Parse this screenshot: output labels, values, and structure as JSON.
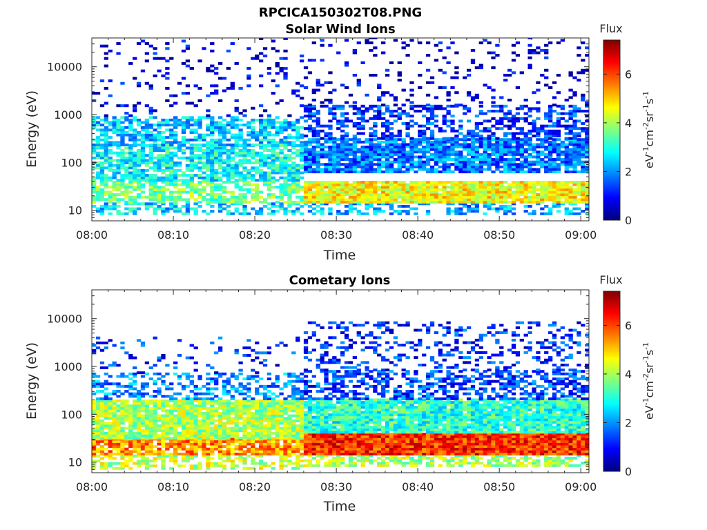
{
  "figure": {
    "title": "RPCICA150302T08.PNG"
  },
  "colorbar": {
    "label_parts": [
      {
        "t": "eV",
        "sup": false
      },
      {
        "t": "-1",
        "sup": true
      },
      {
        "t": "cm",
        "sup": false
      },
      {
        "t": "-2",
        "sup": true
      },
      {
        "t": "sr",
        "sup": false
      },
      {
        "t": "-1",
        "sup": true
      },
      {
        "t": "s",
        "sup": false
      },
      {
        "t": "-1",
        "sup": true
      }
    ],
    "colormap": "jet",
    "colors": [
      "#00007f",
      "#0000ff",
      "#007fff",
      "#00ffff",
      "#7fff7f",
      "#ffff00",
      "#ff7f00",
      "#ff0000",
      "#7f0000"
    ]
  },
  "chart_data": [
    {
      "type": "heatmap",
      "title": "Solar Wind Ions",
      "xlabel": "Time",
      "ylabel": "Energy (eV)",
      "yscale": "log",
      "x_range": [
        "08:00",
        "09:01"
      ],
      "x_ticks": [
        "08:00",
        "08:10",
        "08:20",
        "08:30",
        "08:40",
        "08:50",
        "09:00"
      ],
      "y_range": [
        6,
        40000
      ],
      "y_ticks": [
        10,
        100,
        1000,
        10000
      ],
      "y_tick_labels": [
        "10",
        "100",
        "1000",
        "10000"
      ],
      "color_title": "Flux",
      "color_range": [
        0,
        7.4
      ],
      "color_ticks": [
        0,
        2,
        4,
        6
      ],
      "color_tick_labels": [
        "0",
        "2",
        "4",
        "6"
      ],
      "profile": {
        "intervals": [
          {
            "from": "08:00",
            "to": "08:26",
            "bands": [
              {
                "e_min": 8,
                "e_max": 14,
                "flux": 2.5,
                "coverage": 0.5
              },
              {
                "e_min": 14,
                "e_max": 40,
                "flux": 3.6,
                "coverage": 0.7
              },
              {
                "e_min": 40,
                "e_max": 220,
                "flux": 2.8,
                "coverage": 0.75
              },
              {
                "e_min": 220,
                "e_max": 900,
                "flux": 2.4,
                "coverage": 0.6
              },
              {
                "e_min": 900,
                "e_max": 40000,
                "flux": 0.7,
                "coverage": 0.1
              }
            ]
          },
          {
            "from": "08:26",
            "to": "09:01",
            "bands": [
              {
                "e_min": 8,
                "e_max": 14,
                "flux": 2.2,
                "coverage": 0.45
              },
              {
                "e_min": 14,
                "e_max": 38,
                "flux": 4.6,
                "coverage": 0.95
              },
              {
                "e_min": 60,
                "e_max": 300,
                "flux": 1.8,
                "coverage": 0.85
              },
              {
                "e_min": 300,
                "e_max": 1500,
                "flux": 1.3,
                "coverage": 0.45
              },
              {
                "e_min": 1500,
                "e_max": 40000,
                "flux": 0.6,
                "coverage": 0.12
              }
            ]
          }
        ]
      }
    },
    {
      "type": "heatmap",
      "title": "Cometary Ions",
      "xlabel": "Time",
      "ylabel": "Energy (eV)",
      "yscale": "log",
      "x_range": [
        "08:00",
        "09:01"
      ],
      "x_ticks": [
        "08:00",
        "08:10",
        "08:20",
        "08:30",
        "08:40",
        "08:50",
        "09:00"
      ],
      "y_range": [
        6,
        40000
      ],
      "y_ticks": [
        10,
        100,
        1000,
        10000
      ],
      "y_tick_labels": [
        "10",
        "100",
        "1000",
        "10000"
      ],
      "color_title": "Flux",
      "color_range": [
        0,
        7.4
      ],
      "color_ticks": [
        0,
        2,
        4,
        6
      ],
      "color_tick_labels": [
        "0",
        "2",
        "4",
        "6"
      ],
      "profile": {
        "intervals": [
          {
            "from": "08:00",
            "to": "08:26",
            "bands": [
              {
                "e_min": 7,
                "e_max": 14,
                "flux": 4.2,
                "coverage": 0.55
              },
              {
                "e_min": 14,
                "e_max": 30,
                "flux": 5.4,
                "coverage": 0.85
              },
              {
                "e_min": 30,
                "e_max": 200,
                "flux": 4.0,
                "coverage": 0.9
              },
              {
                "e_min": 200,
                "e_max": 700,
                "flux": 2.0,
                "coverage": 0.45
              },
              {
                "e_min": 700,
                "e_max": 4000,
                "flux": 1.2,
                "coverage": 0.1
              }
            ]
          },
          {
            "from": "08:26",
            "to": "09:01",
            "bands": [
              {
                "e_min": 8,
                "e_max": 14,
                "flux": 4.0,
                "coverage": 0.6
              },
              {
                "e_min": 14,
                "e_max": 40,
                "flux": 6.2,
                "coverage": 1.0
              },
              {
                "e_min": 40,
                "e_max": 200,
                "flux": 3.1,
                "coverage": 0.95
              },
              {
                "e_min": 200,
                "e_max": 800,
                "flux": 1.4,
                "coverage": 0.5
              },
              {
                "e_min": 800,
                "e_max": 8000,
                "flux": 1.2,
                "coverage": 0.25
              }
            ]
          }
        ]
      }
    }
  ]
}
